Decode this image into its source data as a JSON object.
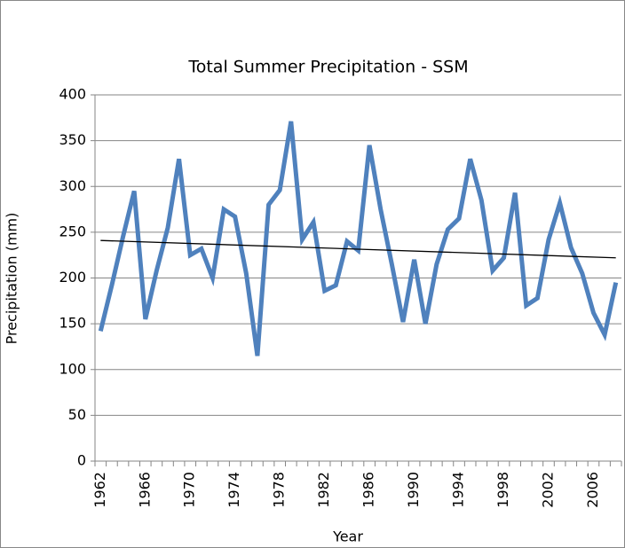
{
  "chart_data": {
    "type": "line",
    "title": "Total Summer Precipitation - SSM",
    "x_label": "Year",
    "y_label": "Precipitation (mm)",
    "categories": [
      "1962",
      null,
      null,
      null,
      "1966",
      null,
      null,
      null,
      "1970",
      null,
      null,
      null,
      "1974",
      null,
      null,
      null,
      "1978",
      null,
      null,
      null,
      "1982",
      null,
      null,
      null,
      "1986",
      null,
      null,
      null,
      "1990",
      null,
      null,
      null,
      "1994",
      null,
      null,
      null,
      "1998",
      null,
      null,
      null,
      "2002",
      null,
      null,
      null,
      "2006",
      null,
      null
    ],
    "series": [
      {
        "color": "#4f81bd",
        "values": [
          142,
          192,
          245,
          295,
          155,
          208,
          255,
          330,
          225,
          232,
          200,
          275,
          267,
          205,
          115,
          280,
          296,
          371,
          242,
          261,
          186,
          192,
          240,
          230,
          345,
          275,
          215,
          152,
          220,
          150,
          215,
          253,
          265,
          330,
          285,
          208,
          222,
          293,
          170,
          178,
          242,
          282,
          233,
          205,
          162,
          138,
          195
        ]
      }
    ],
    "trendline": {
      "color": "#000000",
      "values": [
        241,
        222
      ]
    },
    "ylim": [
      0,
      400
    ],
    "yticks": [
      0,
      50,
      100,
      150,
      200,
      250,
      300,
      350,
      400
    ],
    "grid": true
  }
}
